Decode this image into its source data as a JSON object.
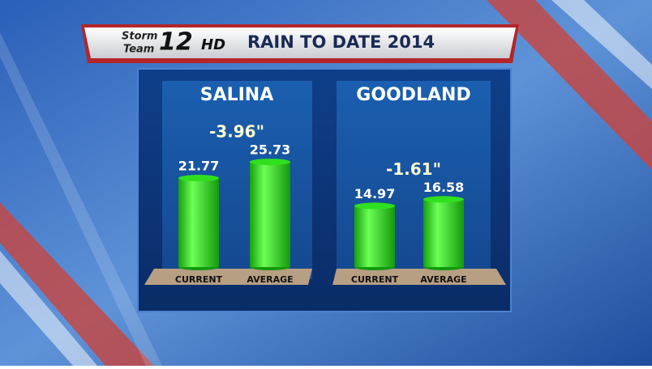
{
  "header": {
    "logo_top": "Storm",
    "logo_bottom": "Team",
    "logo_number": "12",
    "logo_suffix": "HD",
    "title": "RAIN TO DATE 2014"
  },
  "chart_data": [
    {
      "type": "bar",
      "title": "SALINA",
      "categories": [
        "CURRENT",
        "AVERAGE"
      ],
      "values": [
        21.77,
        25.73
      ],
      "annotation": "-3.96\"",
      "color": "#2fe01f"
    },
    {
      "type": "bar",
      "title": "GOODLAND",
      "categories": [
        "CURRENT",
        "AVERAGE"
      ],
      "values": [
        14.97,
        16.58
      ],
      "annotation": "-1.61\"",
      "color": "#2fe01f"
    }
  ]
}
